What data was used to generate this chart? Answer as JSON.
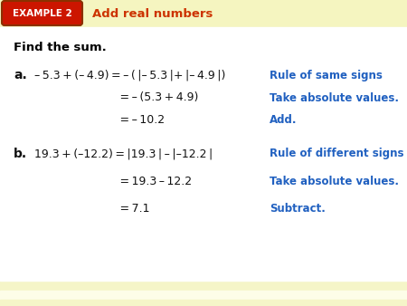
{
  "bg_color": "#FFFFFF",
  "top_stripe_color": "#F5F5C8",
  "bottom_stripe_color": "#F5F5C8",
  "example_box_color": "#CC1500",
  "example_box_border": "#8B3000",
  "example_text": "EXAMPLE 2",
  "example_text_color": "#FFFFFF",
  "title_text": "Add real numbers",
  "title_color": "#CC3300",
  "find_text": "Find the sum.",
  "find_color": "#000000",
  "blue_color": "#2060C0",
  "black_color": "#111111",
  "label_a": "a.",
  "label_b": "b.",
  "rule_a1": "Rule of same signs",
  "rule_a2": "Take absolute values.",
  "rule_a3": "Add.",
  "rule_b1": "Rule of different signs",
  "rule_b2": "Take absolute values.",
  "rule_b3": "Subtract."
}
